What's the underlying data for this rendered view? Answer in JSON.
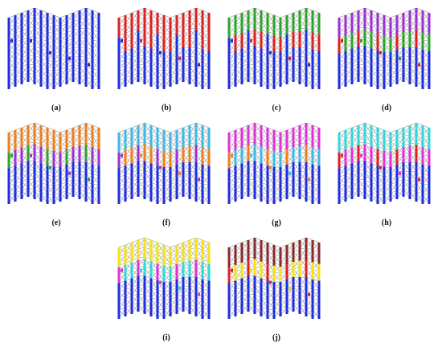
{
  "figure": {
    "panels": [
      {
        "id": "a",
        "label": "(a)",
        "top_color": "#1f2ee0",
        "mid_color": "#1f2ee0",
        "accent": "#1f2ee0"
      },
      {
        "id": "b",
        "label": "(b)",
        "top_color": "#e02020",
        "mid_color": "#e02020",
        "accent": "#1f2ee0"
      },
      {
        "id": "c",
        "label": "(c)",
        "top_color": "#2aa52a",
        "mid_color": "#e02020",
        "accent": "#1f2ee0"
      },
      {
        "id": "d",
        "label": "(d)",
        "top_color": "#9b30d6",
        "mid_color": "#2aa52a",
        "accent": "#e02020"
      },
      {
        "id": "e",
        "label": "(e)",
        "top_color": "#f07f1a",
        "mid_color": "#9b30d6",
        "accent": "#2aa52a"
      },
      {
        "id": "f",
        "label": "(f)",
        "top_color": "#3fb8e8",
        "mid_color": "#f07f1a",
        "accent": "#9b30d6"
      },
      {
        "id": "g",
        "label": "(g)",
        "top_color": "#e032d8",
        "mid_color": "#3fb8e8",
        "accent": "#f07f1a"
      },
      {
        "id": "h",
        "label": "(h)",
        "top_color": "#30d8d8",
        "mid_color": "#e032d8",
        "accent": "#e02020"
      },
      {
        "id": "i",
        "label": "(i)",
        "top_color": "#f5e21a",
        "mid_color": "#30d8d8",
        "accent": "#e032d8"
      },
      {
        "id": "j",
        "label": "(j)",
        "top_color": "#8b2a2a",
        "mid_color": "#f5e21a",
        "accent": "#e02020"
      }
    ],
    "base_color": "#1f2ee0",
    "brace_color": "#7a7a7a"
  }
}
